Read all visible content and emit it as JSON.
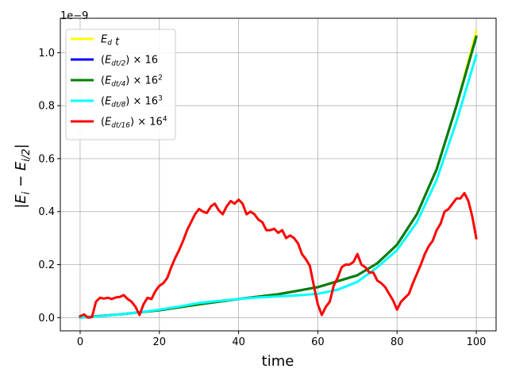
{
  "chart_data": {
    "type": "line",
    "title": "",
    "xlabel": "time",
    "ylabel": "|E_i − E_{i/2}|",
    "ylabel_main": "|E",
    "ylabel_sub1": "i",
    "ylabel_mid": " − E",
    "ylabel_sub2": "i/2",
    "ylabel_end": "|",
    "y_scale_exponent": "1e−9",
    "xlim": [
      -5,
      105
    ],
    "ylim": [
      -0.05,
      1.13
    ],
    "xticks": [
      0,
      20,
      40,
      60,
      80,
      100
    ],
    "yticks": [
      0.0,
      0.2,
      0.4,
      0.6,
      0.8,
      1.0
    ],
    "xtick_labels": [
      "0",
      "20",
      "40",
      "60",
      "80",
      "100"
    ],
    "ytick_labels": [
      "0.0",
      "0.2",
      "0.4",
      "0.6",
      "0.8",
      "1.0"
    ],
    "grid": true,
    "legend_position": "upper-left",
    "series": [
      {
        "key": "e_d_t",
        "name": "E_d t",
        "color": "#ffff00",
        "x": [
          0,
          10,
          20,
          30,
          40,
          50,
          60,
          70,
          75,
          80,
          85,
          90,
          95,
          100
        ],
        "y": [
          0.0,
          0.012,
          0.028,
          0.05,
          0.07,
          0.088,
          0.115,
          0.16,
          0.205,
          0.275,
          0.39,
          0.56,
          0.8,
          1.08
        ]
      },
      {
        "key": "e_dt2",
        "name": "(E_dt/2) × 16",
        "color": "#0000ff",
        "x": [
          0,
          10,
          20,
          30,
          40,
          50,
          60,
          70,
          75,
          80,
          85,
          90,
          95,
          100
        ],
        "y": [
          0.0,
          0.012,
          0.028,
          0.05,
          0.07,
          0.088,
          0.115,
          0.16,
          0.205,
          0.275,
          0.39,
          0.56,
          0.8,
          1.06
        ]
      },
      {
        "key": "e_dt4",
        "name": "(E_dt/4) × 16²",
        "color": "#008000",
        "x": [
          0,
          10,
          20,
          30,
          40,
          50,
          60,
          70,
          75,
          80,
          85,
          90,
          95,
          100
        ],
        "y": [
          0.0,
          0.012,
          0.028,
          0.05,
          0.07,
          0.088,
          0.115,
          0.16,
          0.205,
          0.275,
          0.39,
          0.56,
          0.8,
          1.06
        ]
      },
      {
        "key": "e_dt8",
        "name": "(E_dt/8) × 16³",
        "color": "#00ffff",
        "x": [
          0,
          5,
          10,
          15,
          20,
          25,
          30,
          35,
          40,
          45,
          50,
          55,
          60,
          65,
          70,
          75,
          80,
          85,
          90,
          95,
          100
        ],
        "y": [
          0.0,
          0.005,
          0.012,
          0.02,
          0.03,
          0.042,
          0.055,
          0.063,
          0.07,
          0.076,
          0.08,
          0.084,
          0.09,
          0.105,
          0.135,
          0.19,
          0.255,
          0.36,
          0.52,
          0.74,
          0.99
        ]
      },
      {
        "key": "e_dt16",
        "name": "(E_dt/16) × 16⁴",
        "color": "#ff0000",
        "x": [
          0,
          1,
          2,
          3,
          4,
          5,
          6,
          7,
          8,
          9,
          10,
          11,
          12,
          13,
          14,
          15,
          16,
          17,
          18,
          19,
          20,
          21,
          22,
          23,
          24,
          25,
          26,
          27,
          28,
          29,
          30,
          31,
          32,
          33,
          34,
          35,
          36,
          37,
          38,
          39,
          40,
          41,
          42,
          43,
          44,
          45,
          46,
          47,
          48,
          49,
          50,
          51,
          52,
          53,
          54,
          55,
          56,
          57,
          58,
          59,
          60,
          61,
          62,
          63,
          64,
          65,
          66,
          67,
          68,
          69,
          70,
          71,
          72,
          73,
          74,
          75,
          76,
          77,
          78,
          79,
          80,
          81,
          82,
          83,
          84,
          85,
          86,
          87,
          88,
          89,
          90,
          91,
          92,
          93,
          94,
          95,
          96,
          97,
          98,
          99,
          100
        ],
        "y": [
          0.005,
          0.012,
          0.0,
          0.002,
          0.06,
          0.075,
          0.072,
          0.075,
          0.07,
          0.076,
          0.078,
          0.085,
          0.07,
          0.06,
          0.04,
          0.01,
          0.05,
          0.075,
          0.07,
          0.1,
          0.12,
          0.13,
          0.15,
          0.19,
          0.225,
          0.255,
          0.29,
          0.33,
          0.36,
          0.39,
          0.41,
          0.4,
          0.395,
          0.42,
          0.43,
          0.405,
          0.39,
          0.42,
          0.44,
          0.43,
          0.445,
          0.43,
          0.39,
          0.4,
          0.39,
          0.37,
          0.36,
          0.33,
          0.33,
          0.335,
          0.32,
          0.33,
          0.3,
          0.31,
          0.3,
          0.28,
          0.24,
          0.22,
          0.195,
          0.12,
          0.05,
          0.01,
          0.04,
          0.06,
          0.12,
          0.15,
          0.19,
          0.2,
          0.2,
          0.21,
          0.24,
          0.2,
          0.19,
          0.17,
          0.17,
          0.14,
          0.13,
          0.115,
          0.09,
          0.065,
          0.03,
          0.06,
          0.075,
          0.09,
          0.13,
          0.165,
          0.2,
          0.24,
          0.27,
          0.29,
          0.33,
          0.355,
          0.4,
          0.41,
          0.43,
          0.45,
          0.45,
          0.47,
          0.44,
          0.38,
          0.3
        ]
      }
    ]
  }
}
